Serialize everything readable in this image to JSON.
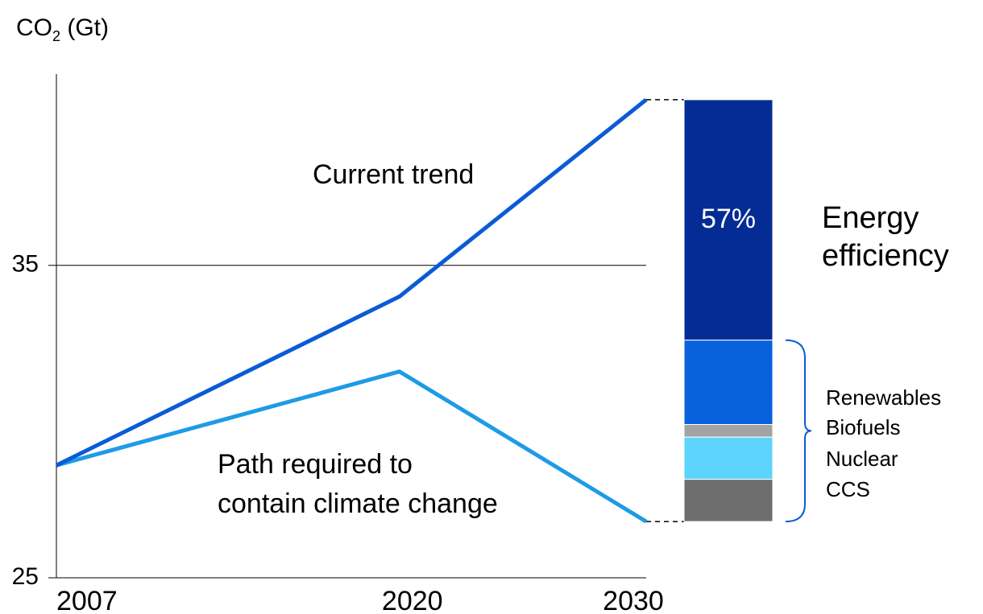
{
  "chart_data": {
    "type": "line",
    "ylabel_prefix": "CO",
    "ylabel_sub": "2",
    "ylabel_suffix": " (Gt)",
    "x": [
      "2007",
      "2020",
      "2030"
    ],
    "y_ticks": [
      "35",
      "25"
    ],
    "ylim": [
      25,
      40.4
    ],
    "grid": false,
    "series": [
      {
        "name": "Current trend",
        "values": [
          28.6,
          34,
          40.3
        ],
        "color": "#0a5bd6"
      },
      {
        "name": "Path required to contain climate change",
        "values": [
          28.6,
          31.6,
          26.8
        ],
        "color": "#1e9be6"
      }
    ],
    "annotation": {
      "label": "Current trend"
    },
    "annotation2": {
      "line1": "Path required to",
      "line2": "contain climate change"
    },
    "stack": {
      "total_top": 40.3,
      "total_bottom": 26.8,
      "segments": [
        {
          "name": "Energy efficiency",
          "share": 57,
          "label": "57%",
          "color": "#042c94"
        },
        {
          "name": "Renewables",
          "share": 20,
          "color": "#0862dc"
        },
        {
          "name": "Biofuels",
          "share": 3,
          "color": "#a3a3a3"
        },
        {
          "name": "Nuclear",
          "share": 10,
          "color": "#5cd4fb"
        },
        {
          "name": "CCS",
          "share": 10,
          "color": "#6e6e6e"
        }
      ],
      "side_label_line1": "Energy",
      "side_label_line2": "efficiency",
      "legend": [
        "Renewables",
        "Biofuels",
        "Nuclear",
        "CCS"
      ]
    }
  }
}
